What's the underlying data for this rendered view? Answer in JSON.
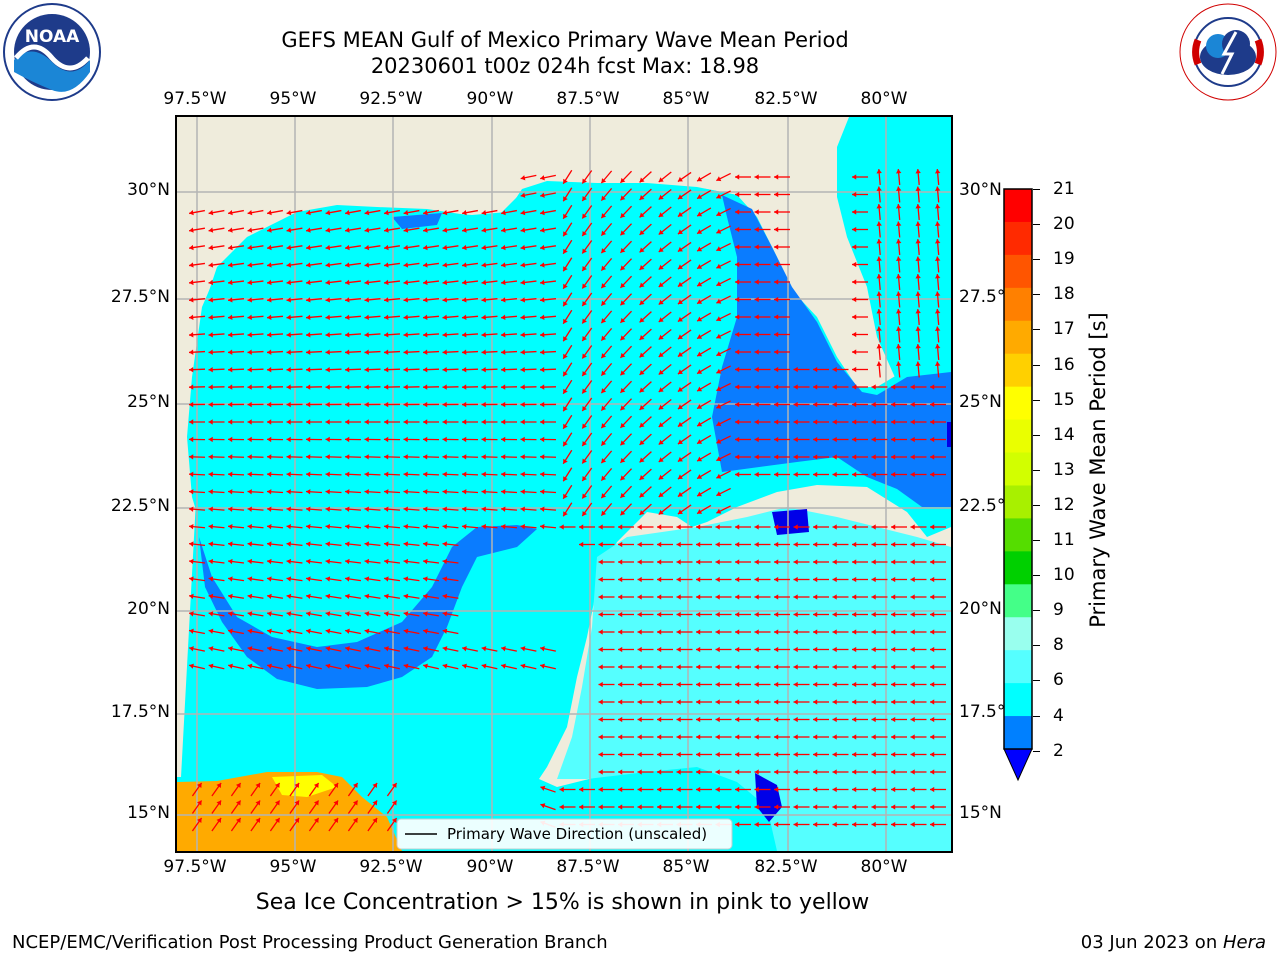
{
  "title_line1": "GEFS MEAN Gulf of Mexico Primary Wave Mean Period",
  "title_line2": "20230601 t00z 024h fcst   Max: 18.98",
  "longitude_labels": [
    "97.5°W",
    "95°W",
    "92.5°W",
    "90°W",
    "87.5°W",
    "85°W",
    "82.5°W",
    "80°W"
  ],
  "latitude_labels_left": [
    "30°N",
    "27.5°N",
    "25°N",
    "22.5°N",
    "20°N",
    "17.5°N",
    "15°N"
  ],
  "latitude_labels_right": [
    "30°N",
    "27.5°N",
    "25°N",
    "22.5°N",
    "20°N",
    "17.5°N",
    "15°N"
  ],
  "legend_label": "Primary Wave Direction (unscaled)",
  "colorbar": {
    "label": "Primary Wave Mean Period [s]",
    "ticks": [
      "21",
      "20",
      "19",
      "18",
      "17",
      "16",
      "15",
      "14",
      "13",
      "12",
      "11",
      "10",
      "9",
      "8",
      "6",
      "4",
      "2"
    ],
    "colors": [
      "#ff0000",
      "#ff2a00",
      "#ff5500",
      "#ff8000",
      "#ffaa00",
      "#ffd000",
      "#ffff00",
      "#eaff00",
      "#d2ff00",
      "#a8f000",
      "#55dd00",
      "#00d000",
      "#44ff88",
      "#99ffee",
      "#55ffff",
      "#00ffff",
      "#0080ff"
    ],
    "extend_color": "#0000ff"
  },
  "colors": {
    "land": "#efecdc",
    "ocean_period_4_6": "#00ffff",
    "ocean_period_6_8": "#55ffff",
    "ocean_period_2_4": "#0a7cff",
    "ocean_period_below_2": "#0000e8",
    "arrow": "#ff0000",
    "grid": "#b4b4b4"
  },
  "sea_ice_note": "Sea Ice Concentration > 15% is shown in pink to yellow",
  "footer_left": "NCEP/EMC/Verification Post Processing Product Generation Branch",
  "footer_right_date": "03 Jun 2023 on ",
  "footer_right_machine": "Hera",
  "logo_left_text": "NOAA",
  "logo_right_text": "NATIONAL WEATHER SERVICE"
}
